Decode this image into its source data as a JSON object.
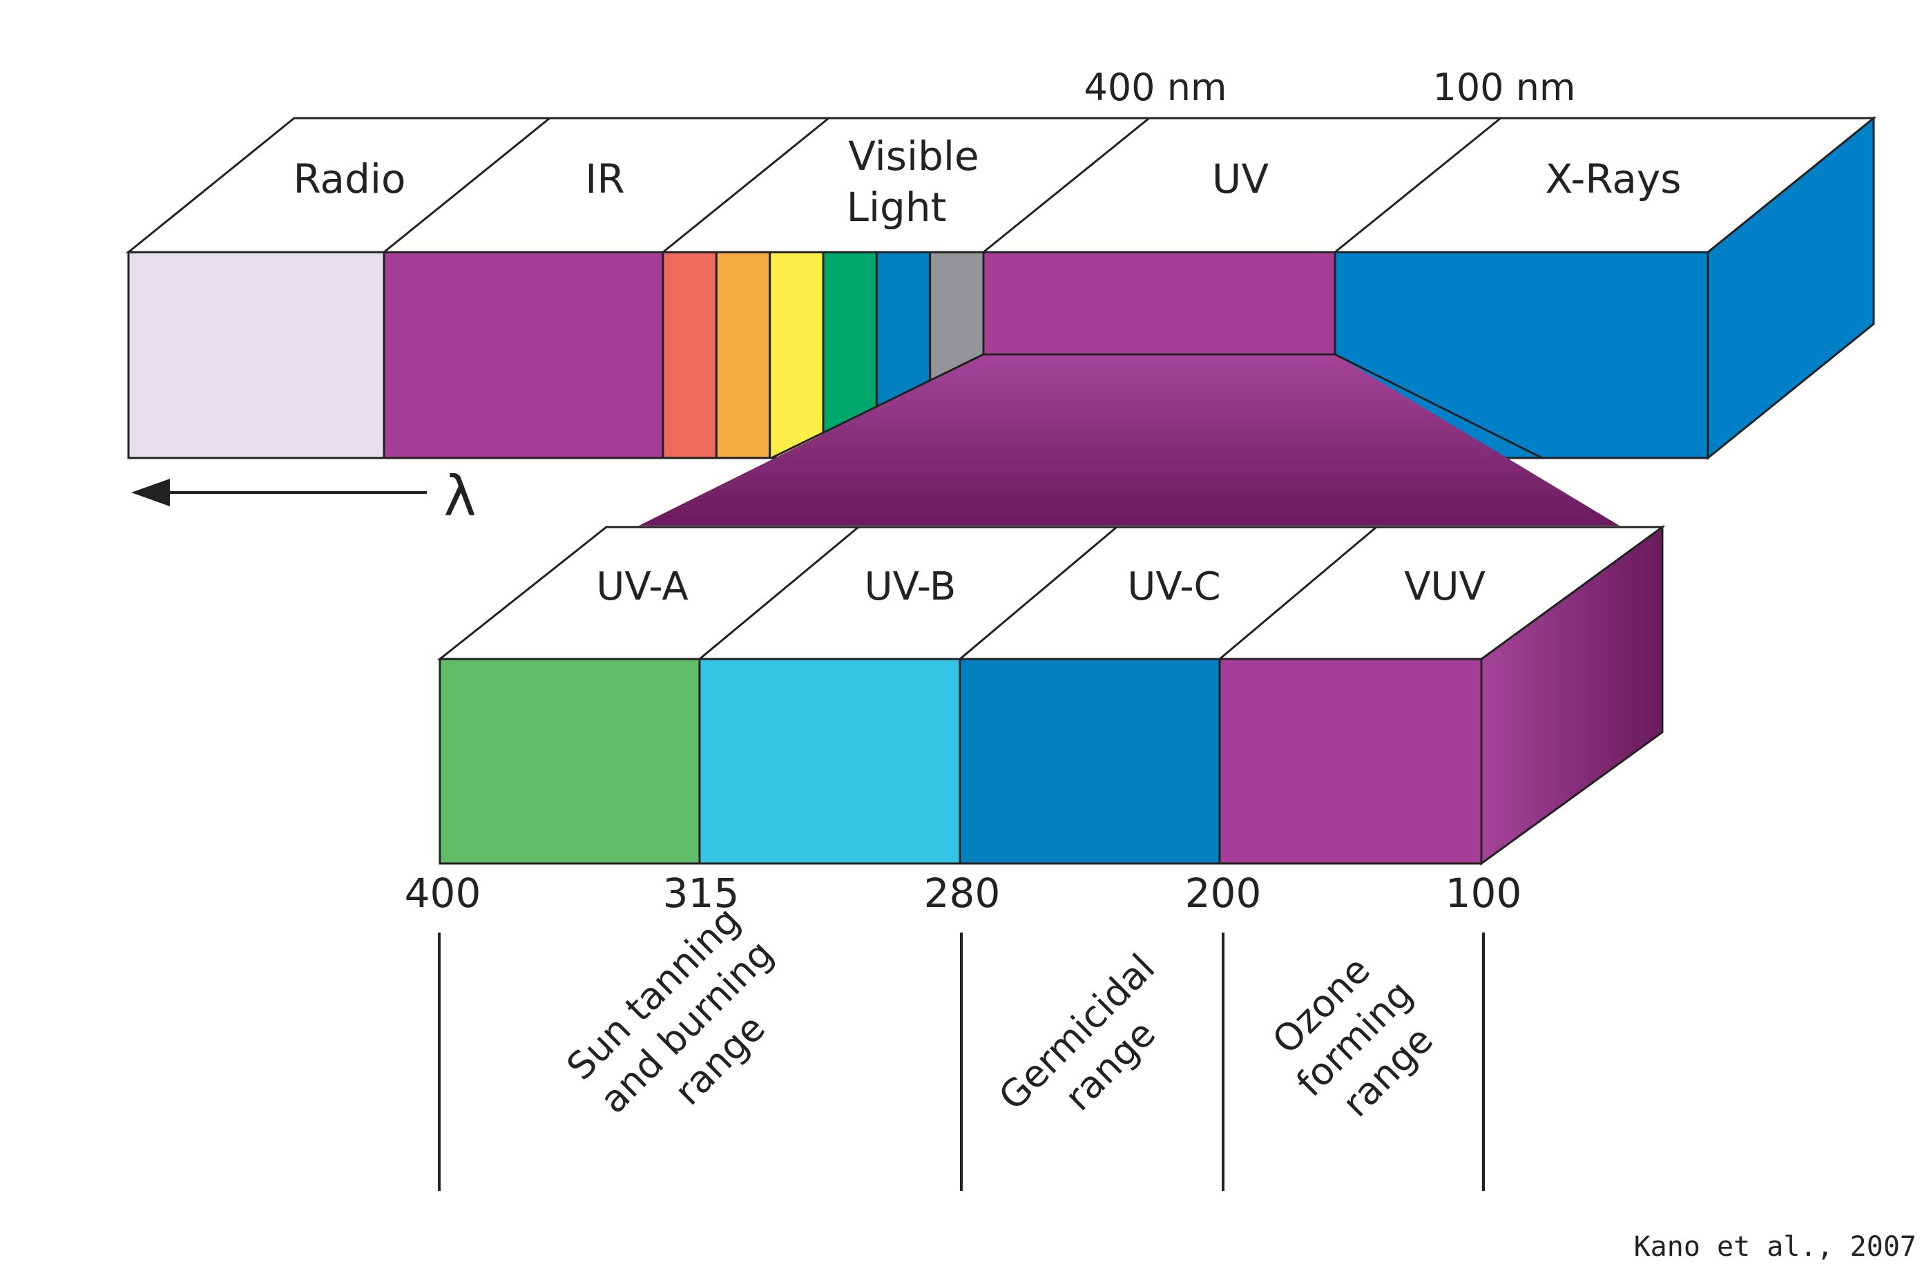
{
  "top_bar": {
    "boundary_labels": [
      "400 nm",
      "100 nm"
    ],
    "sections": [
      {
        "id": "radio",
        "lines": [
          "Radio"
        ],
        "color": "#E6E0EC"
      },
      {
        "id": "ir",
        "lines": [
          "IR"
        ],
        "color": "#A63D96"
      },
      {
        "id": "visible",
        "lines": [
          "Visible",
          "Light"
        ],
        "colors": [
          "#EE6A5C",
          "#F6AC45",
          "#FCEE48",
          "#00A86B",
          "#0080C0",
          "#939598"
        ]
      },
      {
        "id": "uv",
        "lines": [
          "UV"
        ],
        "color": "#A63D96"
      },
      {
        "id": "xrays",
        "lines": [
          "X-Rays"
        ],
        "color": "#0081C7",
        "side_color": "#0081C7"
      }
    ],
    "wavelength_symbol": "λ"
  },
  "uv_bar": {
    "sections": [
      {
        "id": "uva",
        "label": "UV-A",
        "color": "#61BD67"
      },
      {
        "id": "uvb",
        "label": "UV-B",
        "color": "#36C4E6"
      },
      {
        "id": "uvc",
        "label": "UV-C",
        "color": "#0380BD"
      },
      {
        "id": "vuv",
        "label": "VUV",
        "color": "#A63D96"
      }
    ],
    "ticks": [
      "400",
      "315",
      "280",
      "200",
      "100"
    ],
    "ranges": [
      {
        "id": "sun",
        "lines": [
          "Sun tanning",
          "and burning",
          "range"
        ]
      },
      {
        "id": "germicidal",
        "lines": [
          "Germicidal",
          "range"
        ]
      },
      {
        "id": "ozone",
        "lines": [
          "Ozone",
          "forming",
          "range"
        ]
      }
    ]
  },
  "colors": {
    "connector_light": "#A5449A",
    "connector_dark": "#6A1B5C",
    "outline": "#222222"
  },
  "credit": "Kano et al., 2007"
}
